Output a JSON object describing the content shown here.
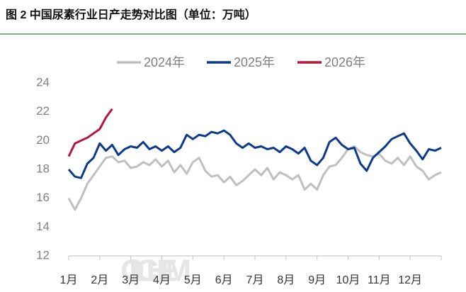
{
  "chart_data": {
    "type": "line",
    "title": "图 2 中国尿素行业日产走势对比图（单位：万吨）",
    "watermark": "OILCHEM",
    "x": [
      0,
      0.2,
      0.4,
      0.6,
      0.8,
      1.0,
      1.2,
      1.4,
      1.6,
      1.8,
      2.0,
      2.2,
      2.4,
      2.6,
      2.8,
      3.0,
      3.2,
      3.4,
      3.6,
      3.8,
      4.0,
      4.2,
      4.4,
      4.6,
      4.8,
      5.0,
      5.2,
      5.4,
      5.6,
      5.8,
      6.0,
      6.2,
      6.4,
      6.6,
      6.8,
      7.0,
      7.2,
      7.4,
      7.6,
      7.8,
      8.0,
      8.2,
      8.4,
      8.6,
      8.8,
      9.0,
      9.2,
      9.4,
      9.6,
      9.8,
      10.0,
      10.2,
      10.4,
      10.6,
      10.8,
      11.0,
      11.2,
      11.4,
      11.6,
      11.8,
      12.0
    ],
    "series": [
      {
        "name": "2024年",
        "color": "#bfbfbf",
        "values": [
          16,
          15.2,
          16,
          17,
          17.6,
          18.2,
          18.8,
          18.9,
          18.5,
          18.6,
          18.1,
          18.2,
          18.5,
          18.3,
          18.7,
          18.2,
          18.6,
          17.8,
          18.3,
          17.7,
          18.5,
          18.8,
          17.9,
          17.5,
          17.6,
          17.1,
          17.5,
          16.9,
          17.2,
          17.6,
          18,
          17.6,
          18.1,
          17.3,
          17.8,
          17.6,
          17.3,
          17.6,
          16.6,
          17.0,
          16.6,
          17.6,
          18.2,
          18.3,
          18.8,
          19.4,
          19.6,
          19.2,
          19,
          18.9,
          19.1,
          18.6,
          18.4,
          18.8,
          18.3,
          18.9,
          18.2,
          17.9,
          17.3,
          17.6,
          17.8
        ]
      },
      {
        "name": "2025年",
        "color": "#0d3a8a",
        "values": [
          18,
          17.5,
          17.4,
          18.4,
          18.8,
          19.8,
          19.3,
          19.7,
          19.0,
          19.4,
          19.6,
          19.5,
          19.9,
          19.4,
          19.6,
          19.3,
          19.6,
          19.2,
          19.5,
          20.4,
          20.1,
          20.4,
          20.3,
          20.6,
          20.5,
          20.7,
          20.4,
          19.8,
          19.5,
          19.8,
          19.5,
          19.6,
          19.4,
          19.5,
          19.2,
          19.6,
          19.4,
          19.1,
          19.5,
          18.6,
          18.3,
          18.8,
          19.9,
          20.2,
          19.7,
          19.4,
          19.5,
          18.4,
          17.9,
          18.8,
          19.2,
          19.6,
          20.1,
          20.3,
          20.5,
          19.8,
          19.3,
          18.7,
          19.4,
          19.3,
          19.5
        ]
      },
      {
        "name": "2026年",
        "color": "#b5173a",
        "values": [
          18.9,
          19.8,
          20,
          20.2,
          20.5,
          20.8,
          21.6,
          22.2,
          null,
          null,
          null,
          null,
          null,
          null,
          null,
          null,
          null,
          null,
          null,
          null,
          null,
          null,
          null,
          null,
          null,
          null,
          null,
          null,
          null,
          null,
          null,
          null,
          null,
          null,
          null,
          null,
          null,
          null,
          null,
          null,
          null,
          null,
          null,
          null,
          null,
          null,
          null,
          null,
          null,
          null,
          null,
          null,
          null,
          null,
          null,
          null,
          null,
          null,
          null,
          null,
          null
        ]
      }
    ],
    "xlim": [
      0,
      12
    ],
    "xticks": [
      {
        "value": 0,
        "label": "1月"
      },
      {
        "value": 1,
        "label": "2月"
      },
      {
        "value": 2,
        "label": "3月"
      },
      {
        "value": 3,
        "label": "4月"
      },
      {
        "value": 4,
        "label": "5月"
      },
      {
        "value": 5,
        "label": "6月"
      },
      {
        "value": 6,
        "label": "7月"
      },
      {
        "value": 7,
        "label": "8月"
      },
      {
        "value": 8,
        "label": "9月"
      },
      {
        "value": 9,
        "label": "10月"
      },
      {
        "value": 10,
        "label": "11月"
      },
      {
        "value": 11,
        "label": "12月"
      },
      {
        "value": 12,
        "label": ""
      }
    ],
    "ylim": [
      12,
      24
    ],
    "yticks": [
      12,
      14,
      16,
      18,
      20,
      22,
      24
    ],
    "legend": "top"
  }
}
